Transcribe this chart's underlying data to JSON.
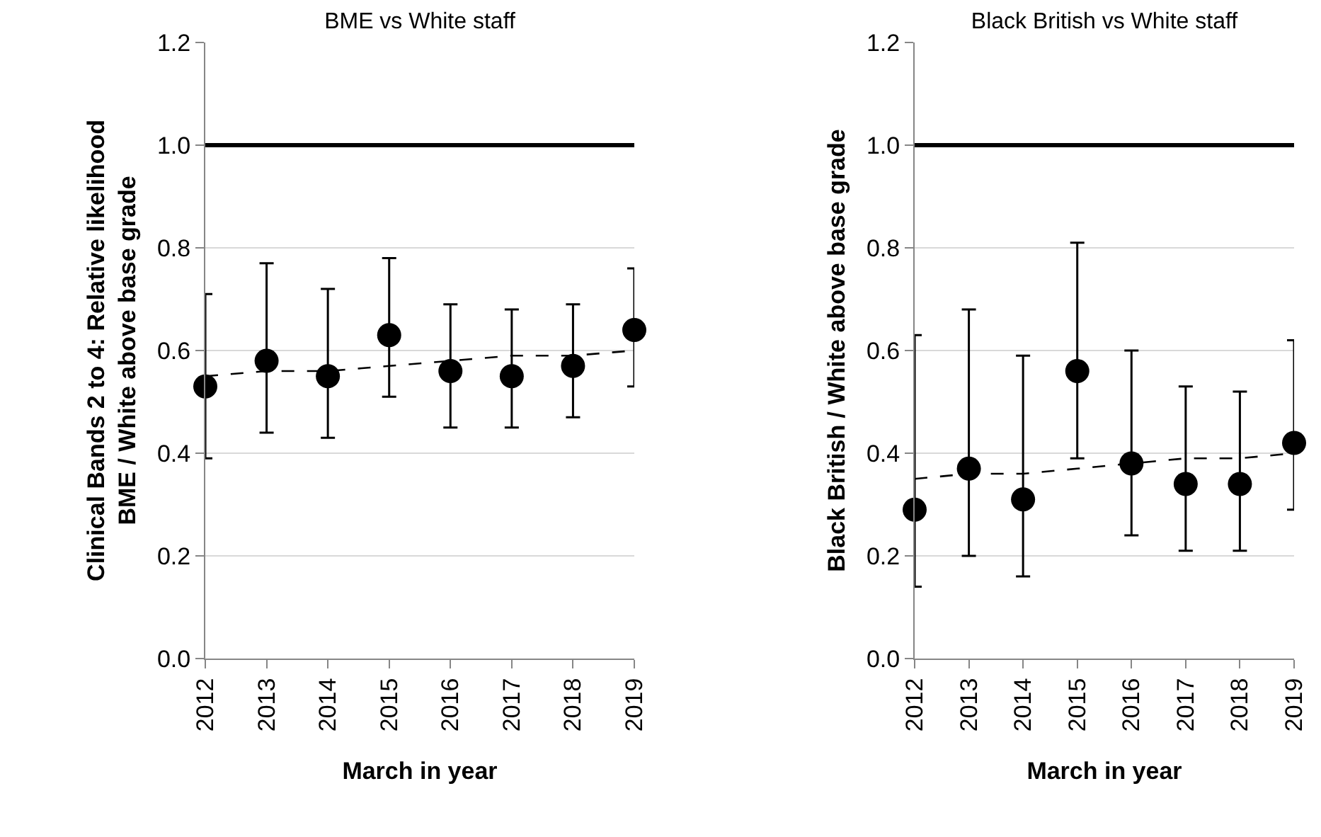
{
  "chart_data": [
    {
      "type": "scatter",
      "title": "BME vs White staff",
      "xlabel": "March in year",
      "ylabel": "Clinical Bands 2 to 4: Relative likelihood\nBME / White above base grade",
      "categories": [
        "2012",
        "2013",
        "2014",
        "2015",
        "2016",
        "2017",
        "2018",
        "2019"
      ],
      "series": [
        {
          "type": "scatter",
          "color": "#000000",
          "marker": "circle",
          "values": [
            0.53,
            0.58,
            0.55,
            0.63,
            0.56,
            0.55,
            0.57,
            0.64
          ],
          "errors": [
            [
              0.39,
              0.71
            ],
            [
              0.44,
              0.77
            ],
            [
              0.43,
              0.72
            ],
            [
              0.51,
              0.78
            ],
            [
              0.45,
              0.69
            ],
            [
              0.45,
              0.68
            ],
            [
              0.47,
              0.69
            ],
            [
              0.53,
              0.76
            ]
          ]
        },
        {
          "type": "line",
          "color": "#000000",
          "marker": "none",
          "line_style": "dashed",
          "values": [
            0.55,
            0.56,
            0.56,
            0.57,
            0.58,
            0.59,
            0.59,
            0.6
          ]
        }
      ],
      "ylim": [
        0,
        1.2
      ],
      "yticks": [
        {
          "value": 0,
          "label": "0.0"
        },
        {
          "value": 0.2,
          "label": "0.2"
        },
        {
          "value": 0.4,
          "label": "0.4"
        },
        {
          "value": 0.6,
          "label": "0.6"
        },
        {
          "value": 0.8,
          "label": "0.8"
        },
        {
          "value": 1,
          "label": "1.0"
        },
        {
          "value": 1.2,
          "label": "1.2"
        }
      ],
      "ref_lines": [
        {
          "axis": "y",
          "value": 1,
          "color": "#000000"
        }
      ],
      "grid": "y"
    },
    {
      "type": "scatter",
      "title": "Black British vs White staff",
      "xlabel": "March in year",
      "ylabel": "Black British / White above base grade",
      "categories": [
        "2012",
        "2013",
        "2014",
        "2015",
        "2016",
        "2017",
        "2018",
        "2019"
      ],
      "series": [
        {
          "type": "scatter",
          "color": "#000000",
          "marker": "circle",
          "values": [
            0.29,
            0.37,
            0.31,
            0.56,
            0.38,
            0.34,
            0.34,
            0.42
          ],
          "errors": [
            [
              0.14,
              0.63
            ],
            [
              0.2,
              0.68
            ],
            [
              0.16,
              0.59
            ],
            [
              0.39,
              0.81
            ],
            [
              0.24,
              0.6
            ],
            [
              0.21,
              0.53
            ],
            [
              0.21,
              0.52
            ],
            [
              0.29,
              0.62
            ]
          ]
        },
        {
          "type": "line",
          "color": "#000000",
          "marker": "none",
          "line_style": "dashed",
          "values": [
            0.35,
            0.36,
            0.36,
            0.37,
            0.38,
            0.39,
            0.39,
            0.4
          ]
        }
      ],
      "ylim": [
        0,
        1.2
      ],
      "yticks": [
        {
          "value": 0,
          "label": "0.0"
        },
        {
          "value": 0.2,
          "label": "0.2"
        },
        {
          "value": 0.4,
          "label": "0.4"
        },
        {
          "value": 0.6,
          "label": "0.6"
        },
        {
          "value": 0.8,
          "label": "0.8"
        },
        {
          "value": 1,
          "label": "1.0"
        },
        {
          "value": 1.2,
          "label": "1.2"
        }
      ],
      "ref_lines": [
        {
          "axis": "y",
          "value": 1,
          "color": "#000000"
        }
      ],
      "grid": "y"
    }
  ]
}
